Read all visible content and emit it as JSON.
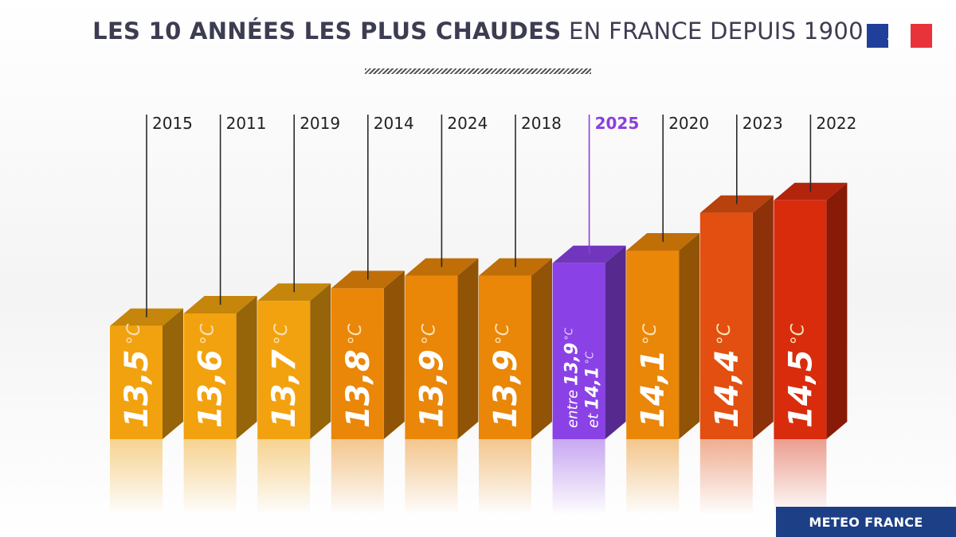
{
  "header": {
    "title_bold": "LES 10 ANNÉES LES PLUS CHAUDES",
    "title_light": "EN FRANCE DEPUIS 1900"
  },
  "brand": {
    "label": "METEO FRANCE"
  },
  "colors": {
    "orange_light": "#f2a20e",
    "orange": "#ea8608",
    "orange_red": "#e24f10",
    "red": "#d92c0d",
    "purple": "#8a42e6",
    "highlight_label": "#8a3fe0"
  },
  "chart_data": {
    "type": "bar",
    "title": "LES 10 ANNÉES LES PLUS CHAUDES EN FRANCE DEPUIS 1900",
    "unit": "°C",
    "categories": [
      "2015",
      "2011",
      "2019",
      "2014",
      "2024",
      "2018",
      "2025",
      "2020",
      "2023",
      "2022"
    ],
    "values": [
      13.5,
      13.6,
      13.7,
      13.8,
      13.9,
      13.9,
      14.0,
      14.1,
      14.4,
      14.5
    ],
    "labels": [
      "13,5",
      "13,6",
      "13,7",
      "13,8",
      "13,9",
      "13,9",
      "",
      "14,1",
      "14,4",
      "14,5"
    ],
    "highlight": {
      "category": "2025",
      "range": [
        13.9,
        14.1
      ],
      "word1": "entre",
      "value1": "13,9",
      "word2": "et",
      "value2": "14,1"
    },
    "legend": "none",
    "grid": false
  }
}
